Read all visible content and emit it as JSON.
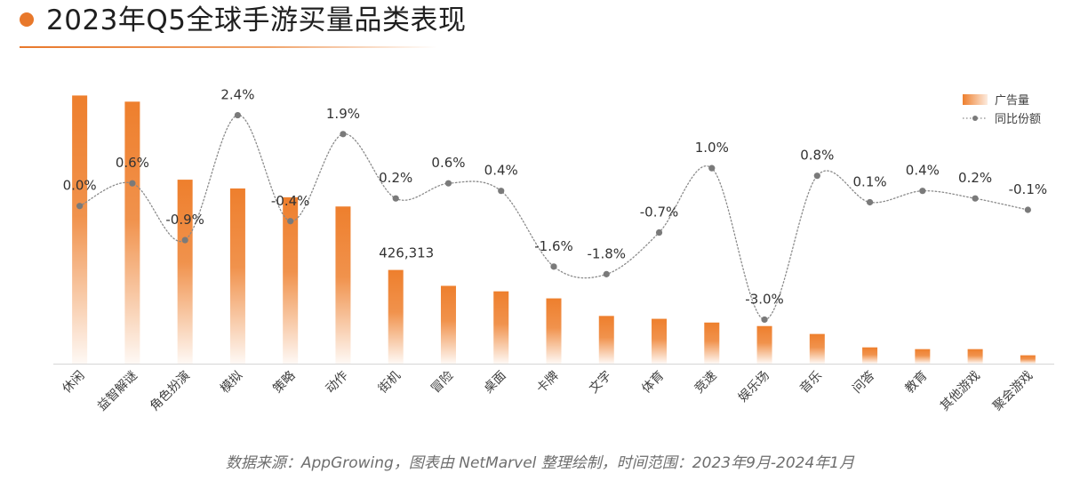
{
  "header": {
    "title": "2023年Q5全球手游买量品类表现"
  },
  "footer": {
    "source": "数据来源：AppGrowing，图表由 NetMarvel 整理绘制，时间范围：2023年9月-2024年1月"
  },
  "colors": {
    "accent": "#e8782b",
    "bar_top": "#ee7f2d",
    "line": "#8a8a8a",
    "point": "#7a7a7a",
    "axis": "#d6d6d6"
  },
  "chart_data": {
    "type": "bar",
    "categories": [
      "休闲",
      "益智解谜",
      "角色扮演",
      "模拟",
      "策略",
      "动作",
      "街机",
      "冒险",
      "桌面",
      "卡牌",
      "文字",
      "体育",
      "竞速",
      "娱乐场",
      "音乐",
      "问答",
      "教育",
      "其他游戏",
      "聚会游戏"
    ],
    "series": [
      {
        "name": "广告量",
        "type": "bar",
        "values": [
          1220000,
          1192000,
          837000,
          797000,
          757000,
          715000,
          426313,
          354000,
          329000,
          297000,
          217000,
          204000,
          187000,
          171000,
          135000,
          74000,
          66000,
          66000,
          38000
        ],
        "data_labels": [
          "",
          "",
          "",
          "",
          "",
          "",
          "426,313",
          "",
          "",
          "",
          "",
          "",
          "",
          "",
          "",
          "",
          "",
          "",
          ""
        ]
      },
      {
        "name": "同比份额",
        "type": "line",
        "smooth": true,
        "values": [
          0.0,
          0.6,
          -0.9,
          2.4,
          -0.4,
          1.9,
          0.2,
          0.6,
          0.4,
          -1.6,
          -1.8,
          -0.7,
          1.0,
          -3.0,
          0.8,
          0.1,
          0.4,
          0.2,
          -0.1
        ],
        "data_labels": [
          "0.0%",
          "0.6%",
          "-0.9%",
          "2.4%",
          "-0.4%",
          "1.9%",
          "0.2%",
          "0.6%",
          "0.4%",
          "-1.6%",
          "-1.8%",
          "-0.7%",
          "1.0%",
          "-3.0%",
          "0.8%",
          "0.1%",
          "0.4%",
          "0.2%",
          "-0.1%"
        ]
      }
    ],
    "ylim_bar": [
      0,
      1250000
    ],
    "ylim_line": [
      -3.6,
      3.0
    ],
    "legend_position": "top-right",
    "grid": false
  }
}
